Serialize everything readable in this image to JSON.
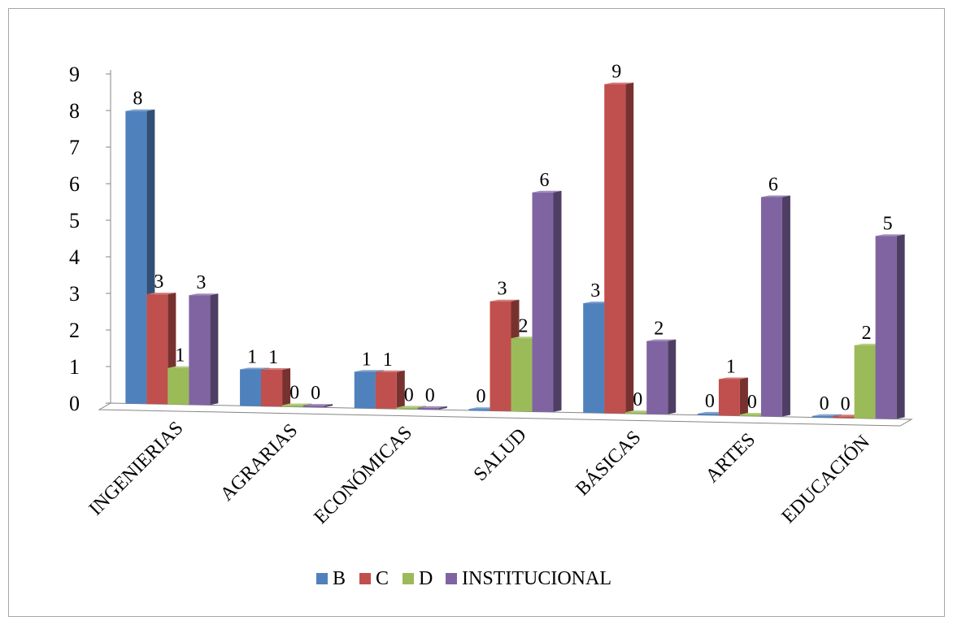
{
  "chart_data": {
    "type": "bar",
    "variant": "3d-clustered-column",
    "title": "",
    "xlabel": "",
    "ylabel": "",
    "ylim": [
      0,
      9
    ],
    "y_ticks": [
      "0",
      "1",
      "2",
      "3",
      "4",
      "5",
      "6",
      "7",
      "8",
      "9"
    ],
    "grid": false,
    "legend_position": "bottom",
    "categories": [
      "INGENIERIAS",
      "AGRARIAS",
      "ECONÓMICAS",
      "SALUD",
      "BÁSICAS",
      "ARTES",
      "EDUCACIÓN"
    ],
    "series": [
      {
        "name": "B",
        "color": "#4f81bd",
        "values": [
          8,
          1,
          1,
          0,
          3,
          0,
          0
        ]
      },
      {
        "name": "C",
        "color": "#c0504d",
        "values": [
          3,
          1,
          1,
          3,
          9,
          1,
          0
        ]
      },
      {
        "name": "D",
        "color": "#9bbb59",
        "values": [
          1,
          0,
          0,
          2,
          0,
          0,
          2
        ]
      },
      {
        "name": "INSTITUCIONAL",
        "color": "#8064a2",
        "values": [
          3,
          0,
          0,
          6,
          2,
          6,
          5
        ]
      }
    ]
  }
}
